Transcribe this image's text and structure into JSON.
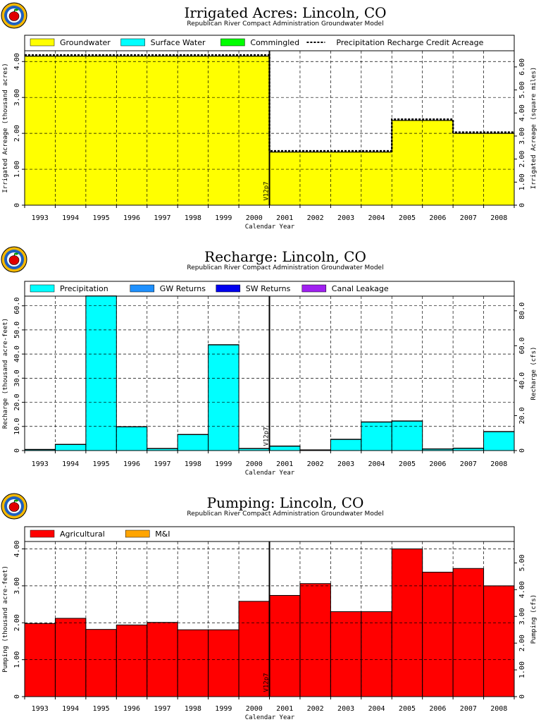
{
  "chart_data": [
    {
      "type": "area",
      "title": "Irrigated Acres: Lincoln, CO",
      "subtitle": "Republican River Compact Administration Groundwater Model",
      "xlabel": "Calendar Year",
      "ylabel": "Irrigated Acreage (thousand acres)",
      "y2label": "Irrigated Acreage (square miles)",
      "categories": [
        "1993",
        "1994",
        "1995",
        "1996",
        "1997",
        "1998",
        "1999",
        "2000",
        "2001",
        "2002",
        "2003",
        "2004",
        "2005",
        "2006",
        "2007",
        "2008"
      ],
      "ylim": [
        0,
        4.3
      ],
      "yticks": [
        0,
        1.0,
        2.0,
        3.0,
        4.0
      ],
      "y2lim": [
        0,
        6.7
      ],
      "y2ticks": [
        0,
        1.0,
        2.0,
        3.0,
        4.0,
        5.0,
        6.0
      ],
      "marker": "V12p7",
      "legend": [
        {
          "name": "Groundwater",
          "color": "#ffff00",
          "kind": "fill"
        },
        {
          "name": "Surface Water",
          "color": "#00ffff",
          "kind": "fill"
        },
        {
          "name": "Commingled",
          "color": "#00ff00",
          "kind": "fill"
        },
        {
          "name": "Precipitation Recharge Credit Acreage",
          "color": "#000000",
          "kind": "dash"
        }
      ],
      "series": [
        {
          "name": "Groundwater",
          "color": "#ffff00",
          "values": [
            4.15,
            4.15,
            4.15,
            4.15,
            4.15,
            4.15,
            4.15,
            4.15,
            1.48,
            1.48,
            1.48,
            1.48,
            2.36,
            2.36,
            2.0,
            2.0
          ]
        },
        {
          "name": "Surface Water",
          "color": "#00ffff",
          "values": [
            0,
            0,
            0,
            0,
            0,
            0,
            0,
            0,
            0,
            0,
            0,
            0,
            0,
            0,
            0,
            0
          ]
        },
        {
          "name": "Commingled",
          "color": "#00ff00",
          "values": [
            0,
            0,
            0,
            0,
            0,
            0,
            0,
            0,
            0,
            0,
            0,
            0,
            0,
            0,
            0,
            0
          ]
        },
        {
          "name": "Precipitation Recharge Credit Acreage",
          "color": "#000000",
          "values": [
            4.15,
            4.15,
            4.15,
            4.15,
            4.15,
            4.15,
            4.15,
            4.15,
            1.48,
            1.48,
            1.48,
            1.48,
            2.36,
            2.36,
            2.0,
            2.0
          ]
        }
      ]
    },
    {
      "type": "bar",
      "title": "Recharge: Lincoln, CO",
      "subtitle": "Republican River Compact Administration Groundwater Model",
      "xlabel": "Calendar Year",
      "ylabel": "Recharge (thousand acre-feet)",
      "y2label": "Recharge (cfs)",
      "categories": [
        "1993",
        "1994",
        "1995",
        "1996",
        "1997",
        "1998",
        "1999",
        "2000",
        "2001",
        "2002",
        "2003",
        "2004",
        "2005",
        "2006",
        "2007",
        "2008"
      ],
      "ylim": [
        0,
        64
      ],
      "yticks": [
        0,
        10.0,
        20.0,
        30.0,
        40.0,
        50.0,
        60.0
      ],
      "y2lim": [
        0,
        88.4
      ],
      "y2ticks": [
        0,
        20.0,
        40.0,
        60.0,
        80.0
      ],
      "marker": "V12p7",
      "legend": [
        {
          "name": "Precipitation",
          "color": "#00ffff",
          "kind": "fill"
        },
        {
          "name": "GW Returns",
          "color": "#1e90ff",
          "kind": "fill"
        },
        {
          "name": "SW Returns",
          "color": "#0000ee",
          "kind": "fill"
        },
        {
          "name": "Canal Leakage",
          "color": "#a020f0",
          "kind": "fill"
        }
      ],
      "series": [
        {
          "name": "Precipitation",
          "color": "#00ffff",
          "values": [
            0.4,
            2.5,
            64.0,
            9.8,
            0.8,
            6.6,
            43.8,
            0.8,
            1.8,
            0.2,
            4.6,
            11.8,
            12.2,
            0.6,
            0.9,
            7.8
          ]
        },
        {
          "name": "GW Returns",
          "color": "#1e90ff",
          "values": [
            0.1,
            0.1,
            0.1,
            0.1,
            0.1,
            0.1,
            0.1,
            0.1,
            0.1,
            0.1,
            0.1,
            0.1,
            0.1,
            0.1,
            0.1,
            0.1
          ]
        },
        {
          "name": "SW Returns",
          "color": "#0000ee",
          "values": [
            0,
            0,
            0,
            0,
            0,
            0,
            0,
            0,
            0,
            0,
            0,
            0,
            0,
            0,
            0,
            0
          ]
        },
        {
          "name": "Canal Leakage",
          "color": "#a020f0",
          "values": [
            0,
            0,
            0,
            0,
            0,
            0,
            0,
            0,
            0,
            0,
            0,
            0,
            0,
            0,
            0,
            0
          ]
        }
      ]
    },
    {
      "type": "bar",
      "title": "Pumping: Lincoln, CO",
      "subtitle": "Republican River Compact Administration Groundwater Model",
      "xlabel": "Calendar Year",
      "ylabel": "Pumping (thousand acre-feet)",
      "y2label": "Pumping (cfs)",
      "categories": [
        "1993",
        "1994",
        "1995",
        "1996",
        "1997",
        "1998",
        "1999",
        "2000",
        "2001",
        "2002",
        "2003",
        "2004",
        "2005",
        "2006",
        "2007",
        "2008"
      ],
      "ylim": [
        0,
        4.2
      ],
      "yticks": [
        0,
        1.0,
        2.0,
        3.0,
        4.0
      ],
      "y2lim": [
        0,
        5.8
      ],
      "y2ticks": [
        0,
        1.0,
        2.0,
        3.0,
        4.0,
        5.0
      ],
      "marker": "V12p7",
      "legend": [
        {
          "name": "Agricultural",
          "color": "#ff0000",
          "kind": "fill"
        },
        {
          "name": "M&I",
          "color": "#ffa500",
          "kind": "fill"
        }
      ],
      "series": [
        {
          "name": "Agricultural",
          "color": "#ff0000",
          "values": [
            1.98,
            2.12,
            1.82,
            1.94,
            2.01,
            1.81,
            1.81,
            2.58,
            2.74,
            3.06,
            2.3,
            2.3,
            4.0,
            3.37,
            3.47,
            3.0
          ]
        },
        {
          "name": "M&I",
          "color": "#ffa500",
          "values": [
            0,
            0,
            0,
            0,
            0,
            0,
            0,
            0,
            0,
            0,
            0,
            0,
            0,
            0,
            0,
            0
          ]
        }
      ]
    }
  ]
}
